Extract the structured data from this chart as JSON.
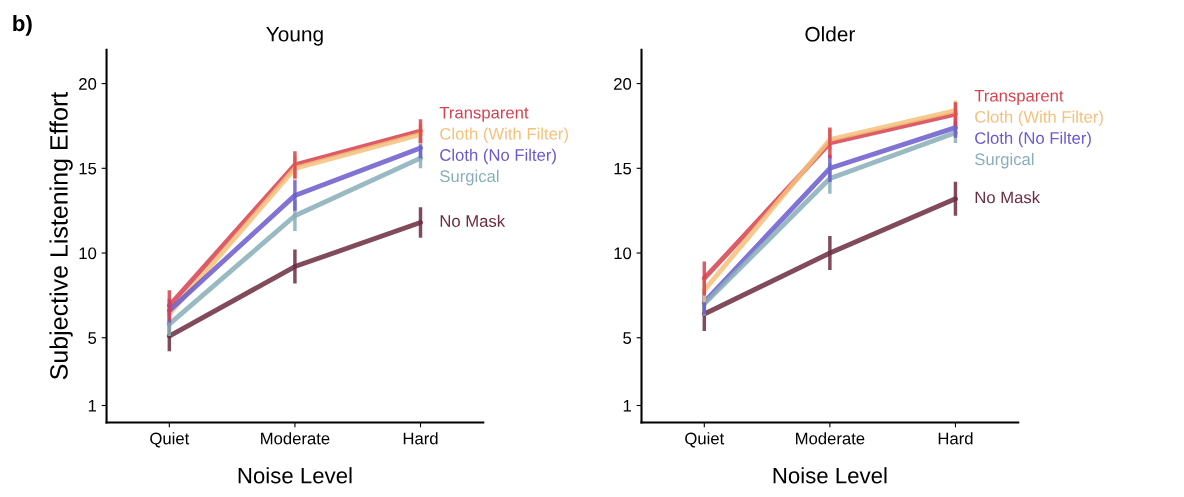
{
  "chart_data": [
    {
      "type": "line",
      "title": "Young",
      "xlabel": "Noise Level",
      "ylabel": "Subjective Listening Effort",
      "annotations": [
        "b)"
      ],
      "categories": [
        "Quiet",
        "Moderate",
        "Hard"
      ],
      "ylim": [
        0,
        22
      ],
      "yticks": [
        1,
        5,
        10,
        15,
        20
      ],
      "grid": false,
      "legend": false,
      "marker": "none",
      "line_style": "solid",
      "series": [
        {
          "name": "Transparent",
          "color": "#d6404e",
          "values": [
            6.9,
            15.2,
            17.2
          ],
          "errors": [
            0.8,
            0.7,
            0.6
          ]
        },
        {
          "name": "Cloth (With Filter)",
          "color": "#f5c07a",
          "values": [
            6.4,
            15.0,
            17.0
          ],
          "errors": [
            null,
            0.6,
            0.5
          ]
        },
        {
          "name": "Cloth (No Filter)",
          "color": "#6a5acd",
          "values": [
            6.6,
            13.4,
            16.2
          ],
          "errors": [
            0.6,
            0.8,
            0.5
          ]
        },
        {
          "name": "Surgical",
          "color": "#87adb8",
          "values": [
            5.8,
            12.2,
            15.6
          ],
          "errors": [
            0.6,
            0.8,
            0.5
          ]
        },
        {
          "name": "No Mask",
          "color": "#6b2c40",
          "values": [
            5.1,
            9.2,
            11.8
          ],
          "errors": [
            0.8,
            0.9,
            0.8
          ]
        }
      ]
    },
    {
      "type": "line",
      "title": "Older",
      "xlabel": "Noise Level",
      "categories": [
        "Quiet",
        "Moderate",
        "Hard"
      ],
      "ylim": [
        0,
        22
      ],
      "yticks": [
        1,
        5,
        10,
        15,
        20
      ],
      "grid": false,
      "legend": false,
      "marker": "none",
      "line_style": "solid",
      "series": [
        {
          "name": "Transparent",
          "color": "#d6404e",
          "values": [
            8.5,
            16.5,
            18.2
          ],
          "errors": [
            0.9,
            0.8,
            0.6
          ]
        },
        {
          "name": "Cloth (With Filter)",
          "color": "#f5c07a",
          "values": [
            7.8,
            16.7,
            18.4
          ],
          "errors": [
            0.6,
            0.5,
            0.5
          ]
        },
        {
          "name": "Cloth (No Filter)",
          "color": "#6a5acd",
          "values": [
            7.1,
            15.0,
            17.4
          ],
          "errors": [
            0.6,
            0.7,
            0.5
          ]
        },
        {
          "name": "Surgical",
          "color": "#87adb8",
          "values": [
            7.0,
            14.4,
            17.1
          ],
          "errors": [
            0.6,
            0.8,
            0.5
          ]
        },
        {
          "name": "No Mask",
          "color": "#6b2c40",
          "values": [
            6.4,
            10.0,
            13.2
          ],
          "errors": [
            0.9,
            0.9,
            0.9
          ]
        }
      ]
    }
  ]
}
